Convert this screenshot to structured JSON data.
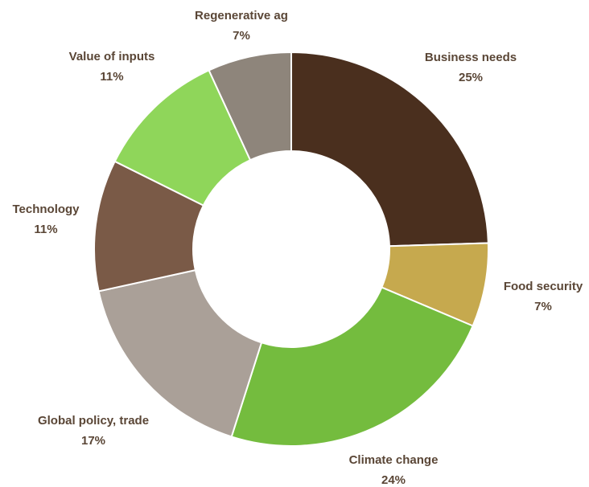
{
  "chart_data": {
    "type": "pie",
    "donut": true,
    "title": "",
    "legend": "none",
    "slices": [
      {
        "label": "Business needs",
        "value": 25,
        "value_label": "25%",
        "color": "#4a2f1e"
      },
      {
        "label": "Food security",
        "value": 7,
        "value_label": "7%",
        "color": "#c6a94e"
      },
      {
        "label": "Climate change",
        "value": 24,
        "value_label": "24%",
        "color": "#74bc3e"
      },
      {
        "label": "Global policy, trade",
        "value": 17,
        "value_label": "17%",
        "color": "#aaa098"
      },
      {
        "label": "Technology",
        "value": 11,
        "value_label": "11%",
        "color": "#7a5a47"
      },
      {
        "label": "Value of inputs",
        "value": 11,
        "value_label": "11%",
        "color": "#8fd65a"
      },
      {
        "label": "Regenerative ag",
        "value": 7,
        "value_label": "7%",
        "color": "#8e857b"
      }
    ]
  }
}
